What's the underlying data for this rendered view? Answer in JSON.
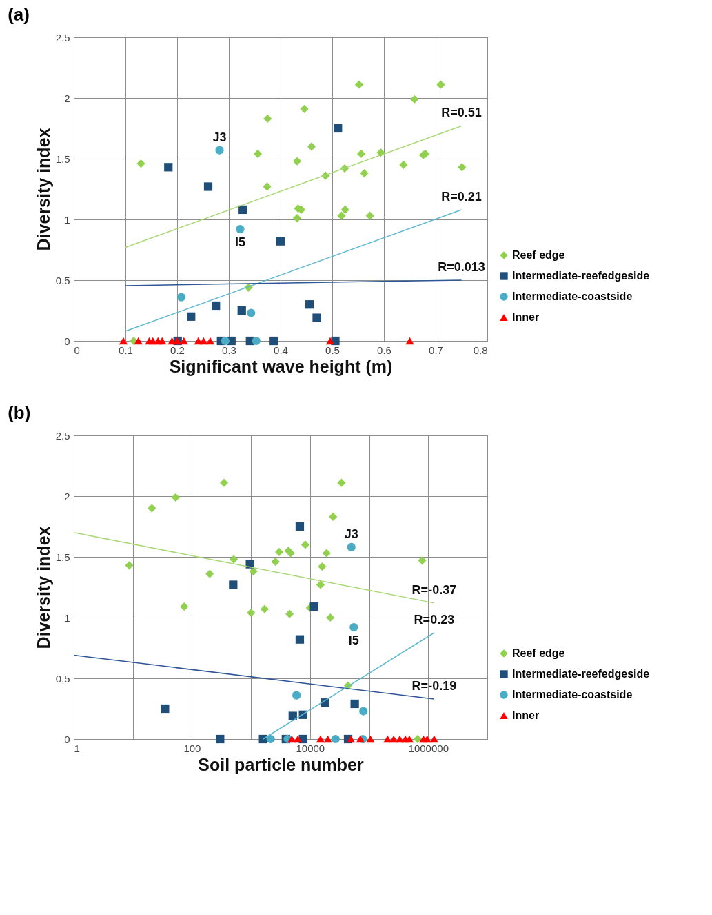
{
  "chart_data": [
    {
      "type": "scatter",
      "title": "(a)",
      "xlabel": "Significant wave height (m)",
      "ylabel": "Diversity index",
      "xlim": [
        0,
        0.8
      ],
      "xticks": [
        0,
        0.1,
        0.2,
        0.3,
        0.4,
        0.5,
        0.6,
        0.7,
        0.8
      ],
      "ylim": [
        0,
        2.5
      ],
      "yticks": [
        0,
        0.5,
        1,
        1.5,
        2,
        2.5
      ],
      "grid": true,
      "legend": "right",
      "series": [
        {
          "name": "Reef edge",
          "color": "#92d050",
          "marker": "diamond",
          "x": [
            0.13,
            0.375,
            0.356,
            0.374,
            0.338,
            0.116,
            0.552,
            0.71,
            0.659,
            0.446,
            0.46,
            0.432,
            0.556,
            0.594,
            0.676,
            0.68,
            0.638,
            0.751,
            0.487,
            0.524,
            0.562,
            0.434,
            0.44,
            0.432,
            0.525,
            0.518,
            0.573
          ],
          "values": [
            1.46,
            1.83,
            1.54,
            1.27,
            0.44,
            0,
            2.11,
            2.11,
            1.99,
            1.91,
            1.6,
            1.48,
            1.54,
            1.55,
            1.53,
            1.54,
            1.45,
            1.43,
            1.36,
            1.42,
            1.38,
            1.09,
            1.08,
            1.01,
            1.08,
            1.03,
            1.03
          ]
        },
        {
          "name": "Intermediate-reefedgeside",
          "color": "#1f4e79",
          "marker": "square",
          "x": [
            0.183,
            0.26,
            0.327,
            0.4,
            0.275,
            0.325,
            0.227,
            0.511,
            0.456,
            0.47,
            0.201,
            0.285,
            0.305,
            0.341,
            0.387,
            0.506
          ],
          "values": [
            1.43,
            1.27,
            1.08,
            0.82,
            0.29,
            0.25,
            0.2,
            1.75,
            0.3,
            0.19,
            0,
            0,
            0,
            0,
            0,
            0
          ]
        },
        {
          "name": "Intermediate-coastside",
          "color": "#4bacc6",
          "marker": "circle",
          "x": [
            0.282,
            0.322,
            0.208,
            0.343,
            0.293,
            0.353
          ],
          "values": [
            1.57,
            0.92,
            0.36,
            0.23,
            0,
            0
          ]
        },
        {
          "name": "Inner",
          "color": "#ff0000",
          "marker": "triangle",
          "x": [
            0.096,
            0.125,
            0.146,
            0.153,
            0.163,
            0.171,
            0.19,
            0.2,
            0.213,
            0.241,
            0.251,
            0.264,
            0.496,
            0.65
          ],
          "values": [
            0,
            0,
            0,
            0,
            0,
            0,
            0,
            0,
            0,
            0,
            0,
            0,
            0,
            0
          ]
        },
        {
          "type": "line",
          "color": "#a9d875",
          "x": [
            0.1,
            0.75
          ],
          "values": [
            0.77,
            1.77
          ]
        },
        {
          "type": "line",
          "color": "#5fb8d0",
          "x": [
            0.1,
            0.75
          ],
          "values": [
            0.08,
            1.08
          ]
        },
        {
          "type": "line",
          "color": "#2f5597",
          "x": [
            0.1,
            0.75
          ],
          "values": [
            0.455,
            0.5
          ]
        }
      ],
      "annotations": [
        {
          "text": "R=0.51",
          "x": 0.75,
          "y": 1.77
        },
        {
          "text": "R=0.21",
          "x": 0.75,
          "y": 1.08
        },
        {
          "text": "R=0.013",
          "x": 0.75,
          "y": 0.5
        },
        {
          "text": "J3",
          "x": 0.282,
          "y": 1.57
        },
        {
          "text": "I5",
          "x": 0.322,
          "y": 0.92
        }
      ]
    },
    {
      "type": "scatter",
      "title": "(b)",
      "xlabel": "Soil particle number",
      "ylabel": "Diversity index",
      "log": "x",
      "xlim": [
        1,
        10000000
      ],
      "xticks": [
        1,
        {
          "value": 10,
          "label": null
        },
        100,
        {
          "value": 1000,
          "label": null
        },
        10000,
        {
          "value": 100000,
          "label": null
        },
        1000000,
        {
          "value": 10000000,
          "label": null
        }
      ],
      "ylim": [
        0,
        2.5
      ],
      "yticks": [
        0,
        0.5,
        1,
        1.5,
        2,
        2.5
      ],
      "grid": true,
      "legend": "right",
      "series": [
        {
          "name": "Reef edge",
          "color": "#92d050",
          "marker": "diamond",
          "x": [
            350,
            53,
            21,
            8.7,
            510,
            2600,
            3000,
            1100,
            200,
            74,
            1000,
            1700,
            34000,
            24500,
            8300,
            4700,
            4300,
            19000,
            16000,
            15000,
            10000,
            4500,
            22000,
            44000,
            790000,
            660000
          ],
          "values": [
            2.11,
            1.99,
            1.9,
            1.43,
            1.48,
            1.46,
            1.54,
            1.38,
            1.36,
            1.09,
            1.04,
            1.07,
            2.11,
            1.83,
            1.6,
            1.53,
            1.55,
            1.53,
            1.42,
            1.27,
            1.08,
            1.03,
            1.0,
            0.44,
            1.47,
            0
          ]
        },
        {
          "name": "Intermediate-reefedgeside",
          "color": "#1f4e79",
          "marker": "square",
          "x": [
            960,
            500,
            35,
            300,
            1600,
            6700,
            11700,
            6700,
            17800,
            57000,
            5100,
            7600,
            3900,
            7600,
            44000
          ],
          "values": [
            1.44,
            1.27,
            0.25,
            0,
            0,
            1.75,
            1.09,
            0.82,
            0.3,
            0.29,
            0.19,
            0.2,
            0,
            0,
            0
          ]
        },
        {
          "name": "Intermediate-coastside",
          "color": "#4bacc6",
          "marker": "circle",
          "x": [
            2150,
            50000,
            55000,
            5900,
            80000,
            4200,
            27000,
            78000
          ],
          "values": [
            0,
            1.58,
            0.92,
            0.36,
            0.23,
            0,
            0,
            0
          ]
        },
        {
          "name": "Inner",
          "color": "#ff0000",
          "marker": "triangle",
          "x": [
            4900,
            6200,
            15000,
            20000,
            49000,
            71000,
            105000,
            205000,
            260000,
            330000,
            410000,
            480000,
            830000,
            960000,
            1260000
          ],
          "values": [
            0,
            0,
            0,
            0,
            0,
            0,
            0,
            0,
            0,
            0,
            0,
            0,
            0,
            0,
            0
          ]
        },
        {
          "type": "line",
          "color": "#a9d875",
          "x": [
            1,
            1260000
          ],
          "values": [
            1.7,
            1.12
          ]
        },
        {
          "type": "line",
          "color": "#2f5597",
          "x": [
            1,
            1260000
          ],
          "values": [
            0.69,
            0.33
          ]
        },
        {
          "type": "line",
          "color": "#5fb8d0",
          "x": [
            1600,
            1260000
          ],
          "values": [
            0,
            0.875
          ]
        }
      ],
      "annotations": [
        {
          "text": "R=-0.37",
          "x": 1260000,
          "y": 1.12
        },
        {
          "text": "R=0.23",
          "x": 1260000,
          "y": 0.875
        },
        {
          "text": "R=-0.19",
          "x": 1260000,
          "y": 0.33
        },
        {
          "text": "J3",
          "x": 50000,
          "y": 1.58
        },
        {
          "text": "I5",
          "x": 55000,
          "y": 0.92
        }
      ]
    }
  ]
}
